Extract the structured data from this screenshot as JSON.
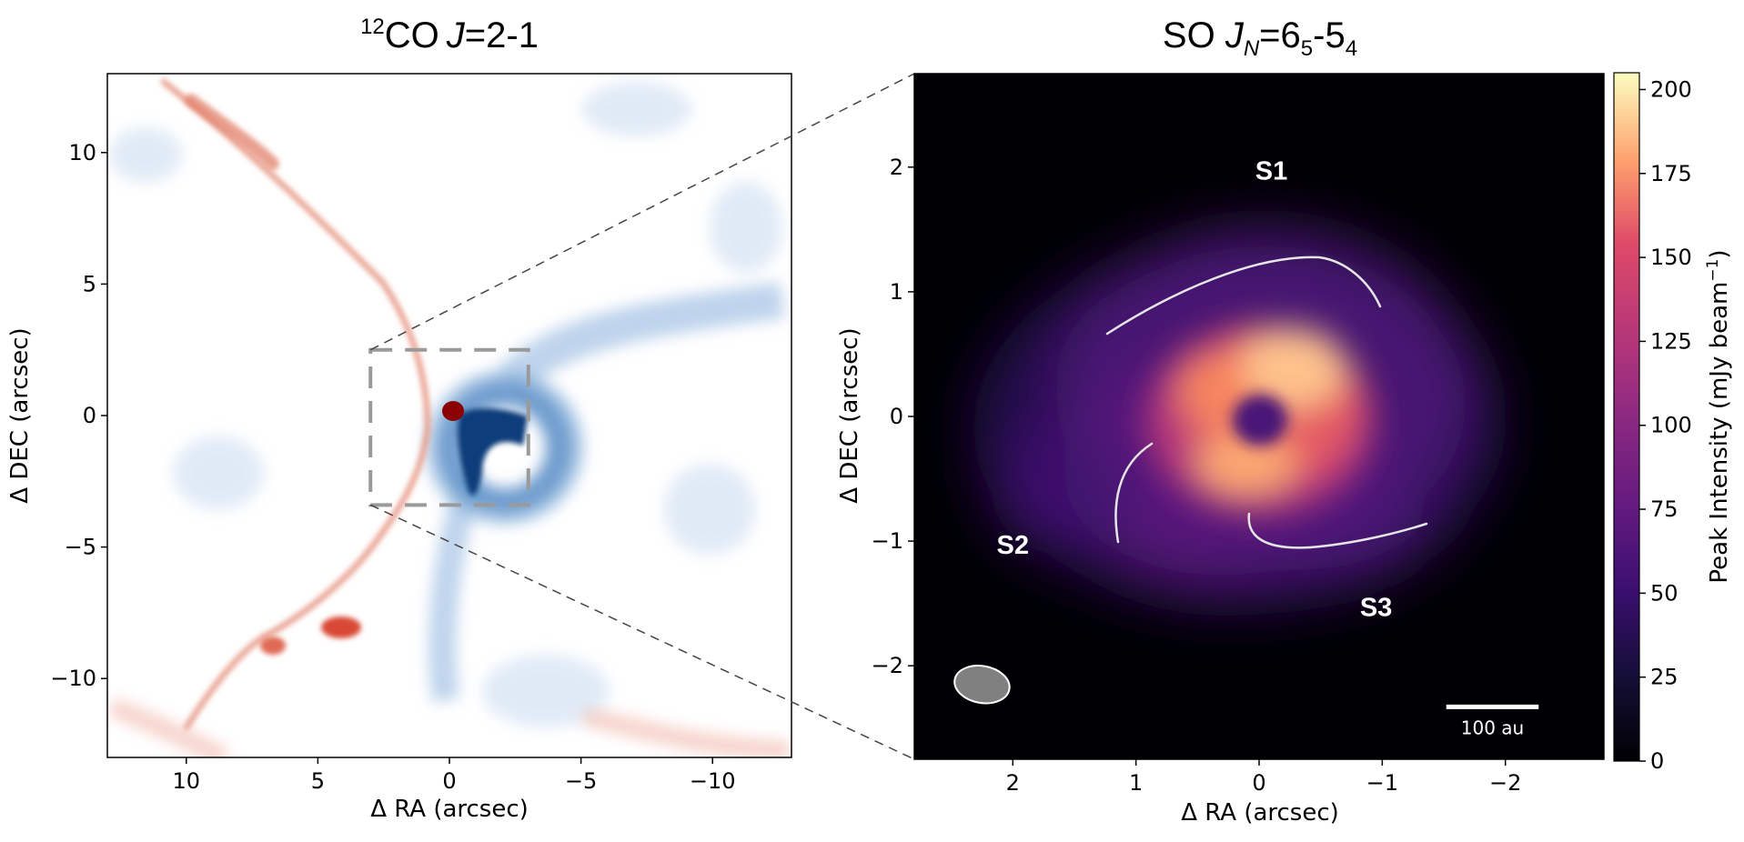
{
  "chart_data": [
    {
      "type": "heatmap",
      "panel": "left",
      "title_main": "CO",
      "title_sup": "12",
      "title_j": "J",
      "title_rest": "=2-1",
      "xlabel": "Δ RA (arcsec)",
      "ylabel": "Δ DEC (arcsec)",
      "xlim": [
        13,
        -13
      ],
      "ylim": [
        -13,
        13
      ],
      "xticks": [
        10,
        5,
        0,
        -5,
        -10
      ],
      "yticks": [
        10,
        5,
        0,
        -5,
        -10
      ],
      "xtick_labels": [
        "10",
        "5",
        "0",
        "−5",
        "−10"
      ],
      "ytick_labels": [
        "10",
        "5",
        "0",
        "−5",
        "−10"
      ],
      "colormap": "red-white-blue (diverging)",
      "zoom_box": {
        "ra": [
          3,
          -3
        ],
        "dec": [
          -3.4,
          2.5
        ]
      }
    },
    {
      "type": "heatmap",
      "panel": "right",
      "title_main": "SO ",
      "title_j": "J",
      "title_sub": "N",
      "title_rest1": "=6",
      "title_sub2": "5",
      "title_rest2": "-5",
      "title_sub3": "4",
      "xlabel": "Δ RA (arcsec)",
      "ylabel": "Δ DEC (arcsec)",
      "xlim": [
        2.8,
        -2.8
      ],
      "ylim": [
        -2.75,
        2.75
      ],
      "xticks": [
        2,
        1,
        0,
        -1,
        -2
      ],
      "yticks": [
        2,
        1,
        0,
        -1,
        -2
      ],
      "xtick_labels": [
        "2",
        "1",
        "0",
        "−1",
        "−2"
      ],
      "ytick_labels": [
        "2",
        "1",
        "0",
        "−1",
        "−2"
      ],
      "colormap": "magma",
      "colorbar": {
        "label": "Peak Intensity (mJy beam",
        "label_sup": "−1",
        "label_close": ")",
        "range": [
          0,
          205
        ],
        "ticks": [
          0,
          25,
          50,
          75,
          100,
          125,
          150,
          175,
          200
        ],
        "tick_labels": [
          "0",
          "25",
          "50",
          "75",
          "100",
          "125",
          "150",
          "175",
          "200"
        ]
      },
      "annotations": [
        {
          "text": "S1",
          "ra": -0.1,
          "dec": 1.9
        },
        {
          "text": "S2",
          "ra": 2.0,
          "dec": -1.1
        },
        {
          "text": "S3",
          "ra": -0.95,
          "dec": -1.6
        }
      ],
      "scale_bar": {
        "label": "100 au",
        "length_arcsec": 0.75
      },
      "beam": {
        "major_arcsec": 0.45,
        "minor_arcsec": 0.3,
        "position_angle_deg": 80
      }
    }
  ]
}
